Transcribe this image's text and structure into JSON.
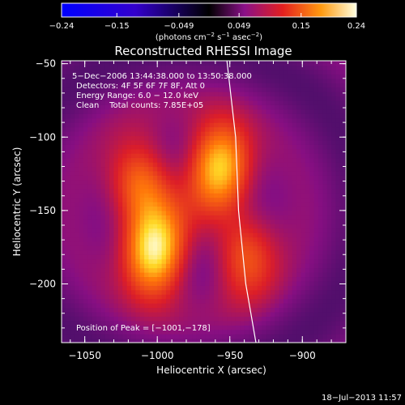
{
  "chart_data": {
    "type": "heatmap",
    "title": "Reconstructed RHESSI Image",
    "xlabel": "Heliocentric X (arcsec)",
    "ylabel": "Heliocentric Y (arcsec)",
    "xlim": [
      -1066,
      -870
    ],
    "ylim": [
      -240,
      -48
    ],
    "xticks": [
      {
        "value": -1050,
        "label": "−1050"
      },
      {
        "value": -1000,
        "label": "−1000"
      },
      {
        "value": -950,
        "label": "−950"
      },
      {
        "value": -900,
        "label": "−900"
      }
    ],
    "yticks": [
      {
        "value": -50,
        "label": "−50"
      },
      {
        "value": -100,
        "label": "−100"
      },
      {
        "value": -150,
        "label": "−150"
      },
      {
        "value": -200,
        "label": "−200"
      }
    ],
    "colorbar": {
      "range": [
        -0.24,
        0.24
      ],
      "ticks": [
        {
          "value": -0.24,
          "label": "−0.24"
        },
        {
          "value": -0.15,
          "label": "−0.15"
        },
        {
          "value": -0.049,
          "label": "−0.049"
        },
        {
          "value": 0.049,
          "label": "0.049"
        },
        {
          "value": 0.15,
          "label": "0.15"
        },
        {
          "value": 0.24,
          "label": "0.24"
        }
      ],
      "unit_prefix": "(photons cm",
      "unit_sup1": "−2",
      "unit_mid": " s",
      "unit_sup2": "−1",
      "unit_mid2": " asec",
      "unit_sup3": "−2",
      "unit_suffix": ")"
    },
    "info_lines": [
      "5−Dec−2006 13:44:38.000 to 13:50:38.000",
      "Detectors: 4F 5F 6F 7F 8F, Att 0",
      "Energy Range: 6.0 − 12.0 keV",
      "Clean    Total counts: 7.85E+05"
    ],
    "peak_text": "Position of Peak = [−1001,−178]",
    "sources": [
      {
        "x": -1002,
        "y": -178,
        "amp": 0.24
      },
      {
        "x": -957,
        "y": -120,
        "amp": 0.22
      },
      {
        "x": -1012,
        "y": -130,
        "amp": 0.15
      },
      {
        "x": -940,
        "y": -180,
        "amp": 0.13
      }
    ],
    "limb_curve": [
      {
        "x": -952,
        "y": -48
      },
      {
        "x": -946,
        "y": -100
      },
      {
        "x": -944,
        "y": -150
      },
      {
        "x": -939,
        "y": -200
      },
      {
        "x": -932,
        "y": -240
      }
    ]
  },
  "footer": {
    "date": "18−Jul−2013 11:57"
  }
}
